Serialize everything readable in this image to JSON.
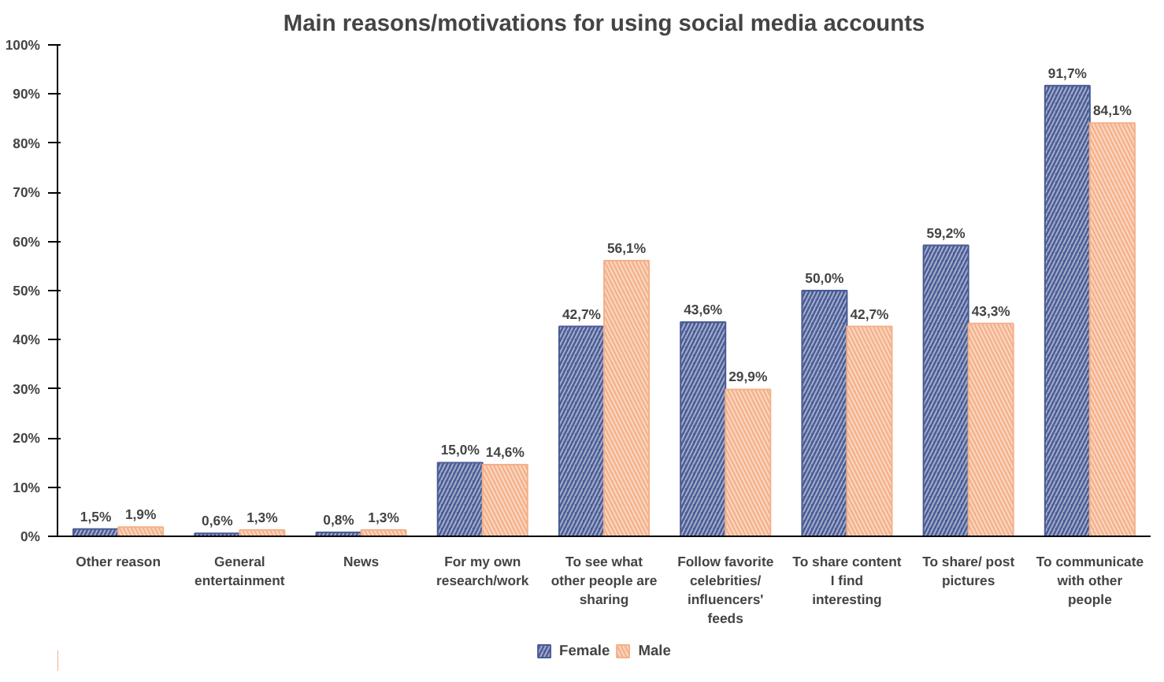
{
  "chart_data": {
    "type": "bar",
    "title": "Main reasons/motivations for using social media accounts",
    "categories": [
      "Other reason",
      "General entertainment",
      "News",
      "For my own research/work",
      "To see what other people are sharing",
      "Follow favorite celebrities/influencers' feeds",
      "To share content I find interesting",
      "To share/ post pictures",
      "To communicate with other people"
    ],
    "series": [
      {
        "name": "Female",
        "color": "#4a5c96",
        "values": [
          1.5,
          0.6,
          0.8,
          15.0,
          42.7,
          43.6,
          50.0,
          59.2,
          91.7
        ],
        "value_labels": [
          "1,5%",
          "0,6%",
          "0,8%",
          "15,0%",
          "42,7%",
          "43,6%",
          "50,0%",
          "59,2%",
          "91,7%"
        ]
      },
      {
        "name": "Male",
        "color": "#f4b18a",
        "values": [
          1.9,
          1.3,
          1.3,
          14.6,
          56.1,
          29.9,
          42.7,
          43.3,
          84.1
        ],
        "value_labels": [
          "1,9%",
          "1,3%",
          "1,3%",
          "14,6%",
          "56,1%",
          "29,9%",
          "42,7%",
          "43,3%",
          "84,1%"
        ]
      }
    ],
    "ylim": [
      0,
      100
    ],
    "yticks": [
      {
        "value": 0,
        "label": "0%"
      },
      {
        "value": 10,
        "label": "10%"
      },
      {
        "value": 20,
        "label": "20%"
      },
      {
        "value": 30,
        "label": "30%"
      },
      {
        "value": 40,
        "label": "40%"
      },
      {
        "value": 50,
        "label": "50%"
      },
      {
        "value": 60,
        "label": "60%"
      },
      {
        "value": 70,
        "label": "70%"
      },
      {
        "value": 80,
        "label": "80%"
      },
      {
        "value": 90,
        "label": "90%"
      },
      {
        "value": 100,
        "label": "100%"
      }
    ],
    "grid": false,
    "legend": "bottom"
  }
}
